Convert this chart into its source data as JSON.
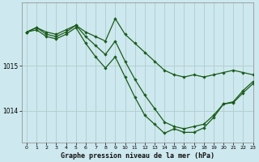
{
  "title": "Graphe pression niveau de la mer (hPa)",
  "bg_color": "#cde8ee",
  "grid_color": "#b0cccc",
  "line_color": "#1a5c1a",
  "xlim": [
    -0.5,
    23
  ],
  "ylim": [
    1013.3,
    1016.4
  ],
  "yticks": [
    1014,
    1015
  ],
  "xticks": [
    0,
    1,
    2,
    3,
    4,
    5,
    6,
    7,
    8,
    9,
    10,
    11,
    12,
    13,
    14,
    15,
    16,
    17,
    18,
    19,
    20,
    21,
    22,
    23
  ],
  "line1_x": [
    0,
    1,
    2,
    3,
    4,
    5,
    6,
    7,
    8,
    9,
    10,
    11,
    12,
    13,
    14,
    15,
    16,
    17,
    18,
    19,
    20,
    21,
    22,
    23
  ],
  "line1_y": [
    1015.75,
    1015.85,
    1015.75,
    1015.7,
    1015.8,
    1015.9,
    1015.75,
    1015.65,
    1015.55,
    1016.05,
    1015.7,
    1015.5,
    1015.3,
    1015.1,
    1014.9,
    1014.8,
    1014.75,
    1014.8,
    1014.75,
    1014.8,
    1014.85,
    1014.9,
    1014.85,
    1014.8
  ],
  "line2_x": [
    0,
    1,
    2,
    3,
    4,
    5,
    6,
    7,
    8,
    9,
    10,
    11,
    12,
    13,
    14,
    15,
    16,
    17,
    18,
    19,
    20,
    21,
    22,
    23
  ],
  "line2_y": [
    1015.75,
    1015.85,
    1015.7,
    1015.65,
    1015.75,
    1015.9,
    1015.65,
    1015.45,
    1015.25,
    1015.55,
    1015.1,
    1014.7,
    1014.35,
    1014.05,
    1013.75,
    1013.65,
    1013.6,
    1013.65,
    1013.7,
    1013.9,
    1014.15,
    1014.2,
    1014.45,
    1014.65
  ],
  "line3_x": [
    0,
    1,
    2,
    3,
    4,
    5,
    6,
    7,
    8,
    9,
    10,
    11,
    12,
    13,
    14,
    15,
    16,
    17,
    18,
    19,
    20,
    21,
    22,
    23
  ],
  "line3_y": [
    1015.75,
    1015.8,
    1015.65,
    1015.6,
    1015.7,
    1015.85,
    1015.5,
    1015.2,
    1014.95,
    1015.2,
    1014.75,
    1014.3,
    1013.9,
    1013.7,
    1013.5,
    1013.6,
    1013.52,
    1013.52,
    1013.62,
    1013.85,
    1014.15,
    1014.18,
    1014.4,
    1014.6
  ]
}
